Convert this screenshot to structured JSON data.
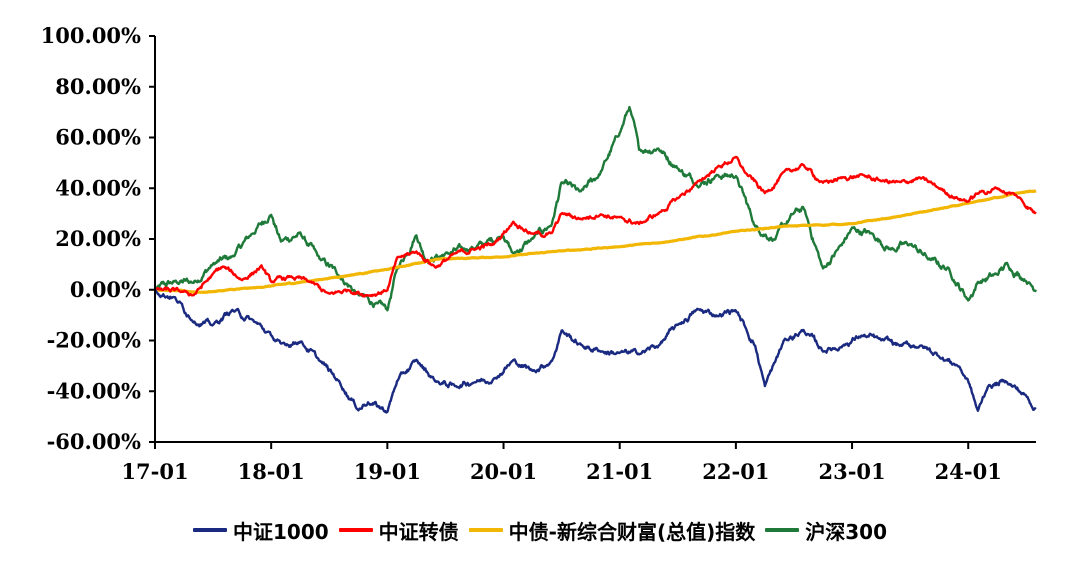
{
  "chart_data": {
    "type": "line",
    "title": "",
    "xlabel": "",
    "ylabel": "",
    "x_ticks": [
      "17-01",
      "18-01",
      "19-01",
      "20-01",
      "21-01",
      "22-01",
      "23-01",
      "24-01"
    ],
    "x_range": [
      "17-01",
      "24-08"
    ],
    "y_ticks": [
      "100.00%",
      "80.00%",
      "60.00%",
      "40.00%",
      "20.00%",
      "0.00%",
      "-20.00%",
      "-40.00%",
      "-60.00%"
    ],
    "ylim": [
      -60,
      100
    ],
    "y_unit": "%",
    "grid": false,
    "legend_position": "bottom",
    "series": [
      {
        "name": "中证1000",
        "color": "#1a2a80",
        "points": [
          [
            "17-01",
            0
          ],
          [
            "17-03",
            -3
          ],
          [
            "17-05",
            -12
          ],
          [
            "17-07",
            -14
          ],
          [
            "17-09",
            -8
          ],
          [
            "17-11",
            -12
          ],
          [
            "18-01",
            -18
          ],
          [
            "18-02",
            -22
          ],
          [
            "18-04",
            -20
          ],
          [
            "18-06",
            -28
          ],
          [
            "18-08",
            -36
          ],
          [
            "18-10",
            -47
          ],
          [
            "18-11",
            -44
          ],
          [
            "19-01",
            -48
          ],
          [
            "19-02",
            -36
          ],
          [
            "19-04",
            -28
          ],
          [
            "19-06",
            -36
          ],
          [
            "19-08",
            -38
          ],
          [
            "19-10",
            -36
          ],
          [
            "19-12",
            -35
          ],
          [
            "20-02",
            -28
          ],
          [
            "20-04",
            -32
          ],
          [
            "20-06",
            -28
          ],
          [
            "20-07",
            -16
          ],
          [
            "20-09",
            -22
          ],
          [
            "20-11",
            -24
          ],
          [
            "21-01",
            -25
          ],
          [
            "21-03",
            -25
          ],
          [
            "21-05",
            -22
          ],
          [
            "21-07",
            -14
          ],
          [
            "21-09",
            -8
          ],
          [
            "21-11",
            -10
          ],
          [
            "22-01",
            -8
          ],
          [
            "22-02",
            -15
          ],
          [
            "22-03",
            -22
          ],
          [
            "22-04",
            -38
          ],
          [
            "22-06",
            -20
          ],
          [
            "22-08",
            -16
          ],
          [
            "22-10",
            -24
          ],
          [
            "22-12",
            -22
          ],
          [
            "23-02",
            -18
          ],
          [
            "23-04",
            -20
          ],
          [
            "23-06",
            -22
          ],
          [
            "23-08",
            -22
          ],
          [
            "23-10",
            -26
          ],
          [
            "23-12",
            -30
          ],
          [
            "24-01",
            -36
          ],
          [
            "24-02",
            -48
          ],
          [
            "24-03",
            -38
          ],
          [
            "24-05",
            -36
          ],
          [
            "24-07",
            -42
          ],
          [
            "24-08",
            -47
          ]
        ]
      },
      {
        "name": "中证转债",
        "color": "#ff0000",
        "points": [
          [
            "17-01",
            0
          ],
          [
            "17-04",
            -1
          ],
          [
            "17-05",
            -2
          ],
          [
            "17-07",
            6
          ],
          [
            "17-08",
            9
          ],
          [
            "17-10",
            4
          ],
          [
            "17-12",
            9
          ],
          [
            "18-01",
            3
          ],
          [
            "18-03",
            5
          ],
          [
            "18-05",
            3
          ],
          [
            "18-07",
            -2
          ],
          [
            "18-09",
            0
          ],
          [
            "18-11",
            -2
          ],
          [
            "19-01",
            0
          ],
          [
            "19-02",
            12
          ],
          [
            "19-04",
            15
          ],
          [
            "19-06",
            9
          ],
          [
            "19-08",
            14
          ],
          [
            "19-10",
            16
          ],
          [
            "19-12",
            18
          ],
          [
            "20-02",
            27
          ],
          [
            "20-04",
            22
          ],
          [
            "20-06",
            22
          ],
          [
            "20-07",
            30
          ],
          [
            "20-09",
            28
          ],
          [
            "20-11",
            30
          ],
          [
            "21-01",
            28
          ],
          [
            "21-03",
            26
          ],
          [
            "21-05",
            30
          ],
          [
            "21-07",
            36
          ],
          [
            "21-09",
            42
          ],
          [
            "21-11",
            48
          ],
          [
            "22-01",
            52
          ],
          [
            "22-02",
            46
          ],
          [
            "22-04",
            38
          ],
          [
            "22-06",
            46
          ],
          [
            "22-08",
            49
          ],
          [
            "22-10",
            42
          ],
          [
            "22-12",
            44
          ],
          [
            "23-02",
            45
          ],
          [
            "23-04",
            43
          ],
          [
            "23-06",
            42
          ],
          [
            "23-08",
            44
          ],
          [
            "23-10",
            40
          ],
          [
            "23-12",
            36
          ],
          [
            "24-01",
            35
          ],
          [
            "24-02",
            38
          ],
          [
            "24-04",
            40
          ],
          [
            "24-06",
            37
          ],
          [
            "24-08",
            30
          ]
        ]
      },
      {
        "name": "中债-新综合财富(总值)指数",
        "color": "#f2b705",
        "points": [
          [
            "17-01",
            0
          ],
          [
            "17-06",
            -1
          ],
          [
            "17-12",
            1
          ],
          [
            "18-06",
            4
          ],
          [
            "19-01",
            8
          ],
          [
            "19-06",
            12
          ],
          [
            "20-01",
            13
          ],
          [
            "20-06",
            15
          ],
          [
            "21-01",
            17
          ],
          [
            "21-06",
            19
          ],
          [
            "22-01",
            23
          ],
          [
            "22-06",
            25
          ],
          [
            "23-01",
            26
          ],
          [
            "23-06",
            29
          ],
          [
            "24-01",
            34
          ],
          [
            "24-06",
            38
          ],
          [
            "24-08",
            39
          ]
        ]
      },
      {
        "name": "沪深300",
        "color": "#1f7a3a",
        "points": [
          [
            "17-01",
            0
          ],
          [
            "17-03",
            3
          ],
          [
            "17-05",
            3
          ],
          [
            "17-07",
            10
          ],
          [
            "17-09",
            13
          ],
          [
            "17-11",
            22
          ],
          [
            "18-01",
            30
          ],
          [
            "18-02",
            19
          ],
          [
            "18-04",
            22
          ],
          [
            "18-06",
            12
          ],
          [
            "18-08",
            6
          ],
          [
            "18-10",
            -2
          ],
          [
            "18-12",
            -6
          ],
          [
            "19-01",
            -8
          ],
          [
            "19-02",
            8
          ],
          [
            "19-04",
            22
          ],
          [
            "19-05",
            12
          ],
          [
            "19-07",
            14
          ],
          [
            "19-09",
            16
          ],
          [
            "19-11",
            18
          ],
          [
            "20-01",
            22
          ],
          [
            "20-02",
            14
          ],
          [
            "20-04",
            20
          ],
          [
            "20-06",
            26
          ],
          [
            "20-07",
            42
          ],
          [
            "20-09",
            38
          ],
          [
            "20-11",
            46
          ],
          [
            "21-01",
            62
          ],
          [
            "21-02",
            72
          ],
          [
            "21-03",
            55
          ],
          [
            "21-05",
            56
          ],
          [
            "21-07",
            48
          ],
          [
            "21-09",
            42
          ],
          [
            "21-11",
            45
          ],
          [
            "22-01",
            45
          ],
          [
            "22-03",
            25
          ],
          [
            "22-05",
            20
          ],
          [
            "22-07",
            30
          ],
          [
            "22-08",
            32
          ],
          [
            "22-10",
            8
          ],
          [
            "22-12",
            18
          ],
          [
            "23-01",
            24
          ],
          [
            "23-03",
            22
          ],
          [
            "23-05",
            16
          ],
          [
            "23-07",
            18
          ],
          [
            "23-09",
            12
          ],
          [
            "23-11",
            8
          ],
          [
            "24-01",
            -4
          ],
          [
            "24-02",
            3
          ],
          [
            "24-04",
            6
          ],
          [
            "24-05",
            10
          ],
          [
            "24-07",
            4
          ],
          [
            "24-08",
            0
          ]
        ]
      }
    ]
  }
}
